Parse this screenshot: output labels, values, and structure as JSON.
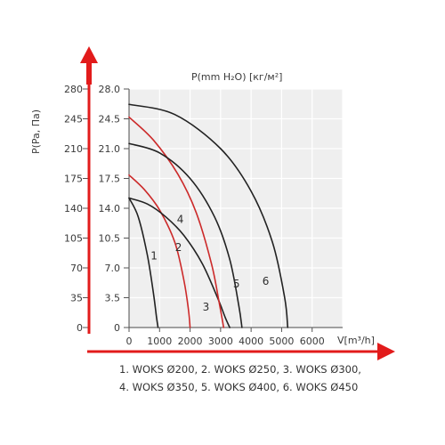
{
  "chart_data": {
    "type": "line",
    "xlabel": "V[m³/h]",
    "ylabel_left": "P(Pa, Па)",
    "ylabel_top": "P(mm H₂O) [кг/м²]",
    "xlim": [
      0,
      7000
    ],
    "ylim_pa": [
      0,
      280
    ],
    "x_ticks": [
      "0",
      "1000",
      "2000",
      "3000",
      "4000",
      "5000",
      "6000"
    ],
    "x_tick_values": [
      0,
      1000,
      2000,
      3000,
      4000,
      5000,
      6000
    ],
    "y_ticks_pa": [
      "0",
      "35",
      "70",
      "105",
      "140",
      "175",
      "210",
      "245",
      "280"
    ],
    "y_ticks_mm": [
      "0",
      "3.5",
      "7.0",
      "10.5",
      "14.0",
      "17.5",
      "21.0",
      "24.5",
      "28.0"
    ],
    "y_tick_values": [
      0,
      35,
      70,
      105,
      140,
      175,
      210,
      245,
      280
    ],
    "grid": true,
    "series": [
      {
        "name": "1",
        "color": "#222222",
        "x": [
          0,
          300,
          600,
          800,
          900,
          950
        ],
        "y": [
          152,
          130,
          85,
          40,
          12,
          0
        ],
        "label_at": [
          820,
          80
        ]
      },
      {
        "name": "2",
        "color": "#cc2a2a",
        "x": [
          0,
          500,
          1000,
          1500,
          1800,
          1950,
          2000
        ],
        "y": [
          179,
          162,
          138,
          100,
          55,
          20,
          0
        ],
        "label_at": [
          1620,
          90
        ]
      },
      {
        "name": "3",
        "color": "#222222",
        "x": [
          0,
          600,
          1200,
          1800,
          2400,
          2900,
          3150,
          3300
        ],
        "y": [
          152,
          145,
          130,
          108,
          75,
          35,
          12,
          0
        ],
        "label_at": [
          2520,
          20
        ]
      },
      {
        "name": "4",
        "color": "#cc2a2a",
        "x": [
          0,
          800,
          1600,
          2200,
          2700,
          2950,
          3100
        ],
        "y": [
          247,
          220,
          180,
          135,
          75,
          30,
          0
        ],
        "label_at": [
          1680,
          123
        ]
      },
      {
        "name": "5",
        "color": "#222222",
        "x": [
          0,
          1000,
          2000,
          2800,
          3300,
          3600,
          3700
        ],
        "y": [
          216,
          205,
          175,
          130,
          80,
          25,
          0
        ],
        "label_at": [
          3520,
          47
        ]
      },
      {
        "name": "6",
        "color": "#222222",
        "x": [
          0,
          1500,
          3000,
          4000,
          4700,
          5100,
          5200
        ],
        "y": [
          262,
          250,
          210,
          160,
          100,
          35,
          0
        ],
        "label_at": [
          4480,
          50
        ]
      }
    ]
  },
  "legend": {
    "line1": "1. WOKS Ø200, 2. WOKS Ø250, 3. WOKS Ø300,",
    "line2": "4. WOKS Ø350, 5. WOKS Ø400, 6. WOKS Ø450"
  },
  "colors": {
    "arrow": "#e21b1b",
    "plot_bg": "#efefef",
    "grid": "#ffffff"
  }
}
